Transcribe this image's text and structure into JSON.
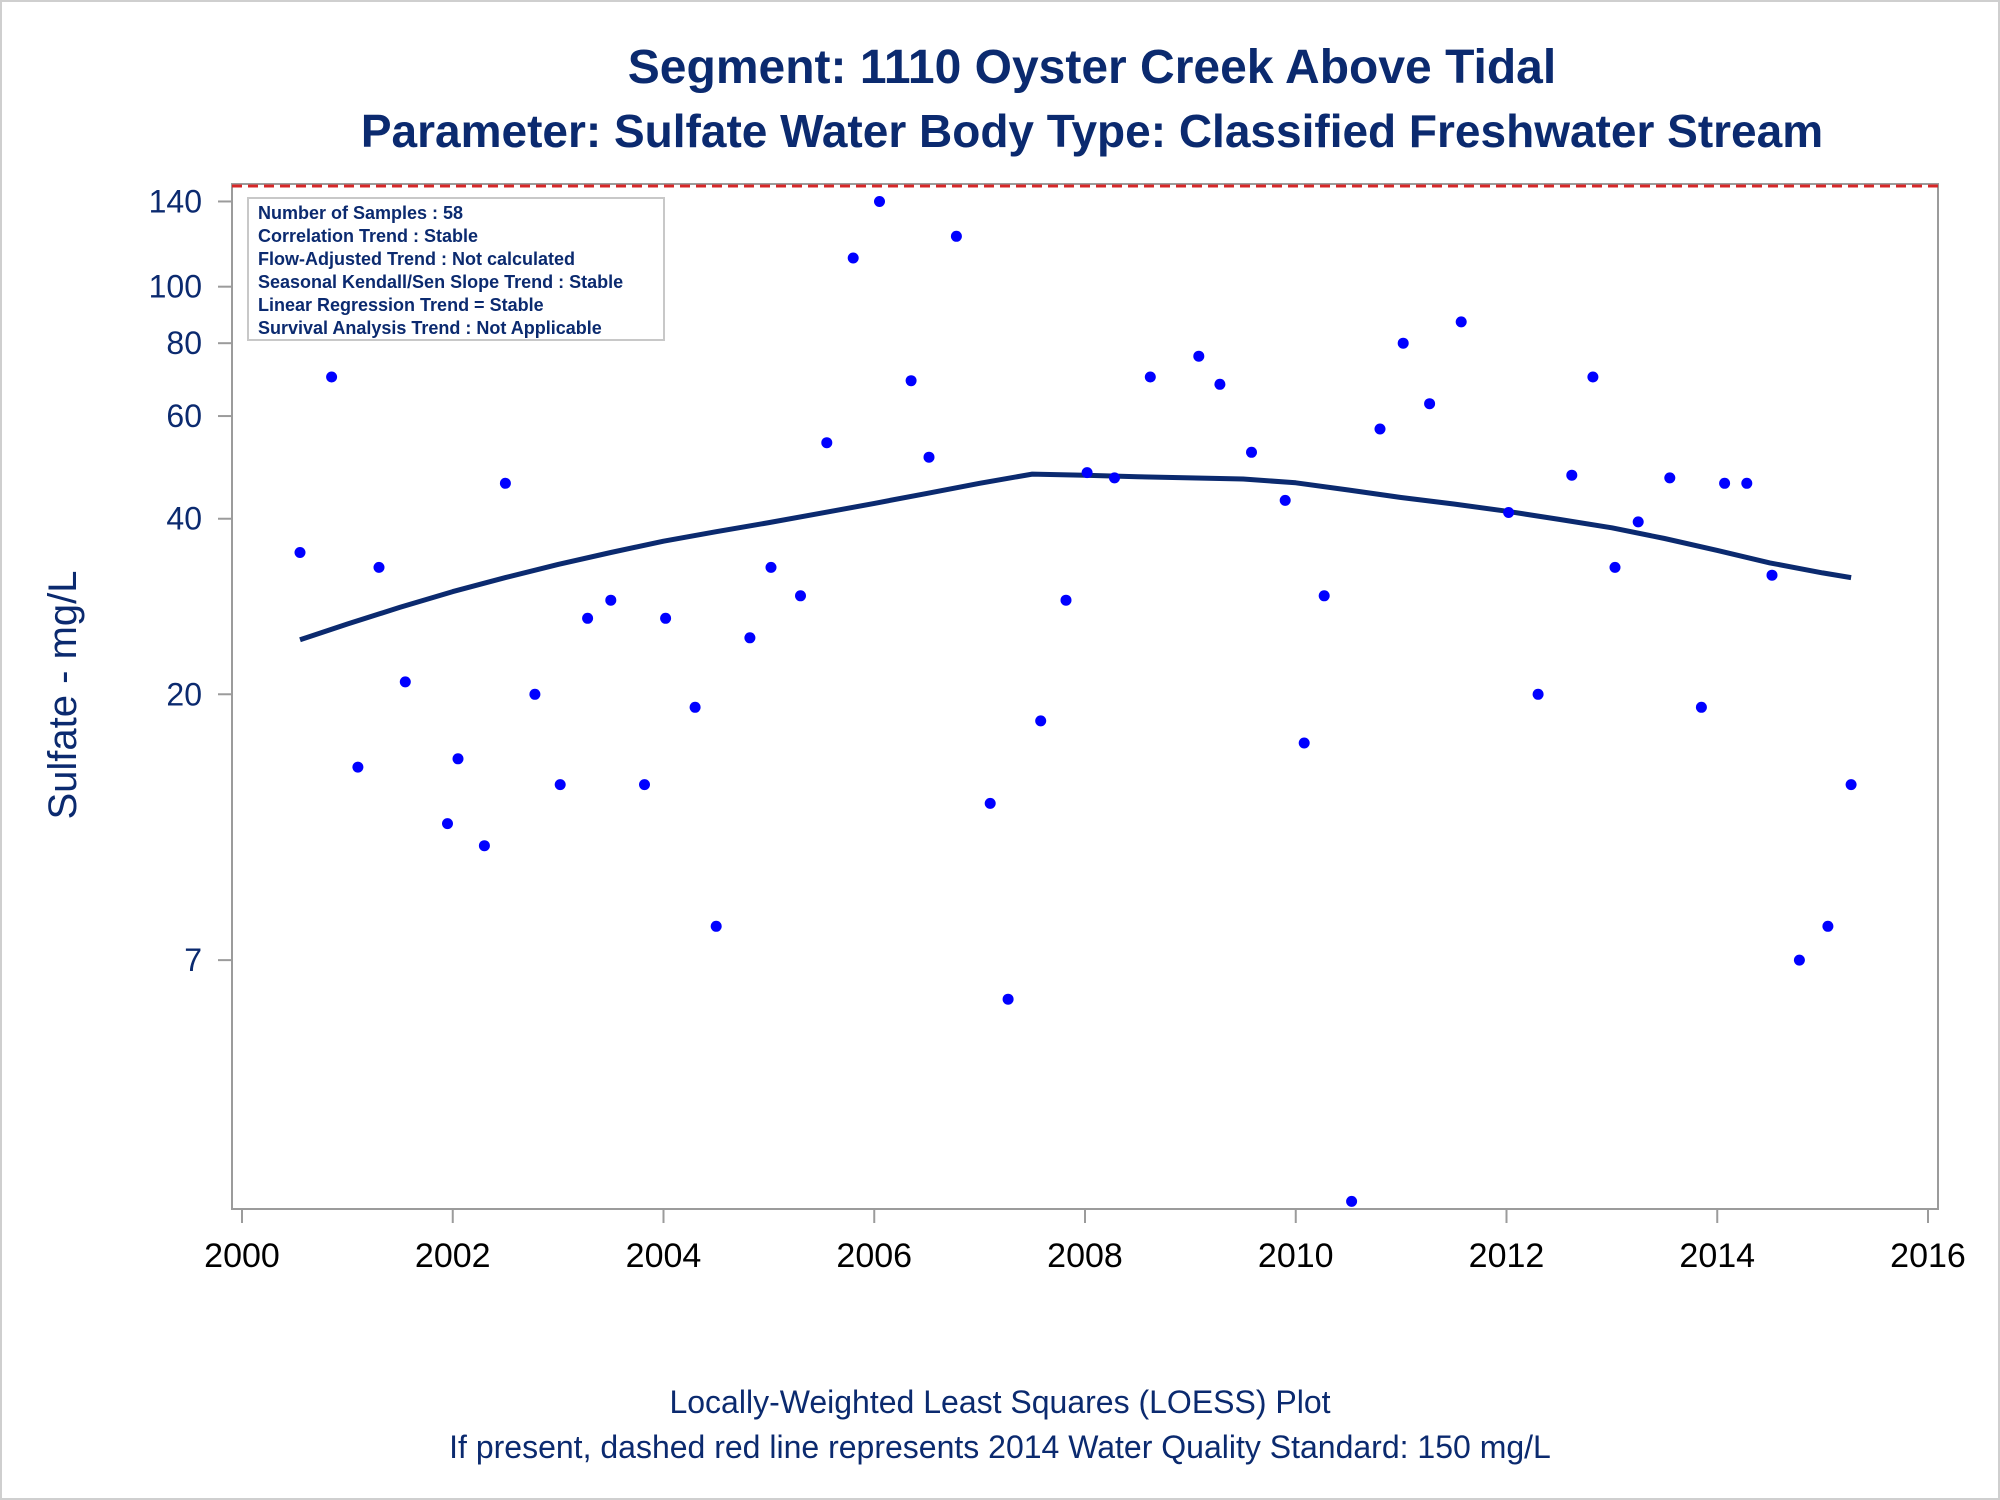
{
  "chart_data": {
    "type": "scatter",
    "title": "Segment: 1110  Oyster Creek Above Tidal",
    "subtitle": "Parameter: Sulfate   Water Body Type: Classified Freshwater Stream",
    "xlabel": "",
    "ylabel": "Sulfate - mg/L",
    "footnotes": [
      "Locally-Weighted Least Squares (LOESS) Plot",
      "If present, dashed red line represents 2014 Water Quality Standard: 150   mg/L"
    ],
    "stats_box": [
      "Number of Samples : 58",
      "Correlation Trend : Stable",
      "Flow-Adjusted Trend : Not calculated",
      "Seasonal Kendall/Sen Slope Trend : Stable",
      "Linear Regression Trend = Stable",
      "Survival Analysis Trend : Not Applicable"
    ],
    "x_axis": {
      "min": 2000,
      "max": 2016,
      "ticks": [
        "2000",
        "2002",
        "2004",
        "2006",
        "2008",
        "2010",
        "2012",
        "2014",
        "2016"
      ]
    },
    "y_axis": {
      "scale": "log",
      "min": 2.62,
      "max": 150,
      "ticks": [
        "7",
        "20",
        "40",
        "60",
        "80",
        "100",
        "140"
      ]
    },
    "grid": false,
    "standard_line": {
      "value": 150,
      "style": "dashed",
      "color": "#d62728"
    },
    "colors": {
      "points": "#0000ff",
      "loess": "#0b2a6f",
      "text": "#0b2a6f"
    },
    "points": [
      {
        "x": 2000.55,
        "y": 35
      },
      {
        "x": 2000.85,
        "y": 70
      },
      {
        "x": 2001.1,
        "y": 15
      },
      {
        "x": 2001.3,
        "y": 33
      },
      {
        "x": 2001.55,
        "y": 21
      },
      {
        "x": 2001.95,
        "y": 12
      },
      {
        "x": 2002.05,
        "y": 15.5
      },
      {
        "x": 2002.3,
        "y": 11
      },
      {
        "x": 2002.5,
        "y": 46
      },
      {
        "x": 2002.78,
        "y": 20
      },
      {
        "x": 2003.02,
        "y": 14
      },
      {
        "x": 2003.28,
        "y": 27
      },
      {
        "x": 2003.5,
        "y": 29
      },
      {
        "x": 2003.82,
        "y": 14
      },
      {
        "x": 2004.02,
        "y": 27
      },
      {
        "x": 2004.3,
        "y": 19
      },
      {
        "x": 2004.5,
        "y": 8
      },
      {
        "x": 2004.82,
        "y": 25
      },
      {
        "x": 2005.02,
        "y": 33
      },
      {
        "x": 2005.3,
        "y": 29.5
      },
      {
        "x": 2005.55,
        "y": 54
      },
      {
        "x": 2005.8,
        "y": 112
      },
      {
        "x": 2006.05,
        "y": 140
      },
      {
        "x": 2006.35,
        "y": 69
      },
      {
        "x": 2006.52,
        "y": 51
      },
      {
        "x": 2006.78,
        "y": 122
      },
      {
        "x": 2007.1,
        "y": 13
      },
      {
        "x": 2007.27,
        "y": 6
      },
      {
        "x": 2007.58,
        "y": 18
      },
      {
        "x": 2007.82,
        "y": 29
      },
      {
        "x": 2008.02,
        "y": 48
      },
      {
        "x": 2008.28,
        "y": 47
      },
      {
        "x": 2008.62,
        "y": 70
      },
      {
        "x": 2009.08,
        "y": 76
      },
      {
        "x": 2009.28,
        "y": 68
      },
      {
        "x": 2009.58,
        "y": 52
      },
      {
        "x": 2009.9,
        "y": 43
      },
      {
        "x": 2010.08,
        "y": 16.5
      },
      {
        "x": 2010.27,
        "y": 29.5
      },
      {
        "x": 2010.53,
        "y": 2.7
      },
      {
        "x": 2010.8,
        "y": 57
      },
      {
        "x": 2011.02,
        "y": 80
      },
      {
        "x": 2011.27,
        "y": 63
      },
      {
        "x": 2011.57,
        "y": 87
      },
      {
        "x": 2012.02,
        "y": 41
      },
      {
        "x": 2012.3,
        "y": 20
      },
      {
        "x": 2012.62,
        "y": 47.5
      },
      {
        "x": 2012.82,
        "y": 70
      },
      {
        "x": 2013.03,
        "y": 33
      },
      {
        "x": 2013.25,
        "y": 39.5
      },
      {
        "x": 2013.55,
        "y": 47
      },
      {
        "x": 2013.85,
        "y": 19
      },
      {
        "x": 2014.07,
        "y": 46
      },
      {
        "x": 2014.28,
        "y": 46
      },
      {
        "x": 2014.52,
        "y": 32
      },
      {
        "x": 2014.78,
        "y": 7
      },
      {
        "x": 2015.05,
        "y": 8
      },
      {
        "x": 2015.27,
        "y": 14
      }
    ],
    "loess": [
      {
        "x": 2000.55,
        "y": 24.8
      },
      {
        "x": 2001.0,
        "y": 26.4
      },
      {
        "x": 2001.5,
        "y": 28.2
      },
      {
        "x": 2002.0,
        "y": 30.0
      },
      {
        "x": 2002.5,
        "y": 31.7
      },
      {
        "x": 2003.0,
        "y": 33.4
      },
      {
        "x": 2003.5,
        "y": 35.0
      },
      {
        "x": 2004.0,
        "y": 36.6
      },
      {
        "x": 2004.5,
        "y": 38.0
      },
      {
        "x": 2005.0,
        "y": 39.4
      },
      {
        "x": 2005.5,
        "y": 40.9
      },
      {
        "x": 2006.0,
        "y": 42.5
      },
      {
        "x": 2006.5,
        "y": 44.2
      },
      {
        "x": 2007.0,
        "y": 46.0
      },
      {
        "x": 2007.5,
        "y": 47.7
      },
      {
        "x": 2008.0,
        "y": 47.5
      },
      {
        "x": 2008.5,
        "y": 47.2
      },
      {
        "x": 2009.0,
        "y": 47.0
      },
      {
        "x": 2009.5,
        "y": 46.8
      },
      {
        "x": 2010.0,
        "y": 46.1
      },
      {
        "x": 2010.5,
        "y": 44.8
      },
      {
        "x": 2011.0,
        "y": 43.5
      },
      {
        "x": 2011.5,
        "y": 42.4
      },
      {
        "x": 2012.0,
        "y": 41.2
      },
      {
        "x": 2012.5,
        "y": 39.9
      },
      {
        "x": 2013.0,
        "y": 38.6
      },
      {
        "x": 2013.5,
        "y": 37.0
      },
      {
        "x": 2014.0,
        "y": 35.3
      },
      {
        "x": 2014.5,
        "y": 33.6
      },
      {
        "x": 2015.0,
        "y": 32.3
      },
      {
        "x": 2015.27,
        "y": 31.7
      }
    ]
  }
}
